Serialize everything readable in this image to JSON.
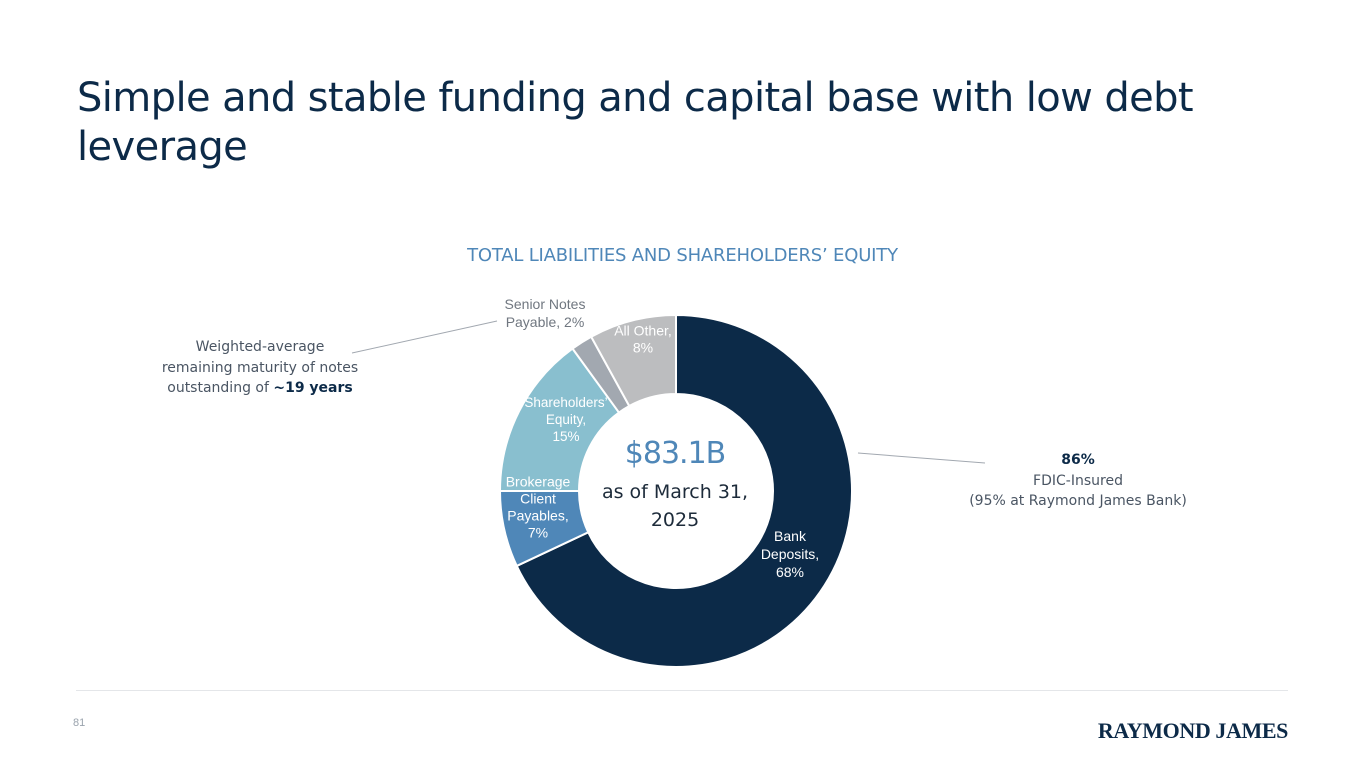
{
  "title": "Simple and stable funding and capital base with low debt leverage",
  "chart_data": {
    "type": "pie",
    "title": "TOTAL LIABILITIES AND SHAREHOLDERS’ EQUITY",
    "center_value": "$83.1B",
    "center_subtitle": "as of March 31, 2025",
    "slices": [
      {
        "label": "Bank Deposits,",
        "value": 68,
        "value_label": "68%",
        "color": "#0c2a48"
      },
      {
        "label": "Brokerage Client Payables,",
        "value": 7,
        "value_label": "7%",
        "color": "#4f87b8"
      },
      {
        "label": "Shareholders' Equity,",
        "value": 15,
        "value_label": "15%",
        "color": "#89bfcf"
      },
      {
        "label": "Senior Notes Payable, 2%",
        "value": 2,
        "value_label": "",
        "color": "#a2a8b0"
      },
      {
        "label": "All Other,",
        "value": 8,
        "value_label": "8%",
        "color": "#bcbdbf"
      }
    ]
  },
  "callouts": {
    "left": {
      "line1": "Weighted-average",
      "line2": "remaining maturity of notes",
      "line3_prefix": "outstanding of ",
      "line3_bold": "~19 years"
    },
    "right": {
      "bold": "86%",
      "line2": "FDIC-Insured",
      "line3": "(95% at Raymond James Bank)"
    }
  },
  "footer": {
    "page_number": "81",
    "logo_text": "RAYMOND JAMES"
  }
}
